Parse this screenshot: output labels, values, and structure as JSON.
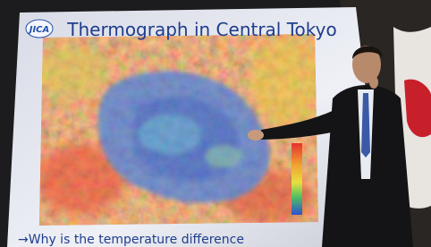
{
  "slide": {
    "logo": "JICA",
    "title": "Thermograph in Central Tokyo",
    "caption": "→Why is the temperature difference"
  }
}
